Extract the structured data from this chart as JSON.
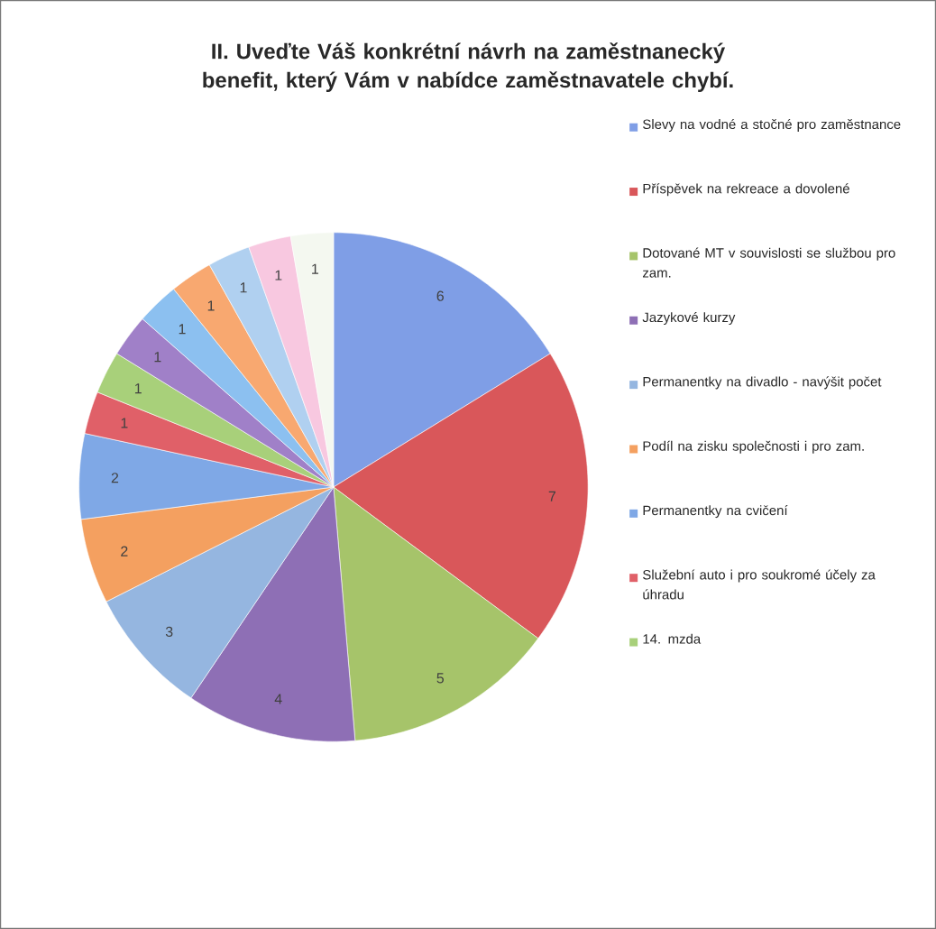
{
  "chart_data": {
    "type": "pie",
    "title": "II.  Uveďte Váš konkrétní návrh na zaměstnanecký benefit, který Vám v nabídce zaměstnavatele chybí.",
    "categories": [
      "Slevy na vodné a stočné pro zaměstnance",
      "Příspěvek na rekreace a dovolené",
      "Dotované MT v souvislosti se službou pro zam.",
      "Jazykové kurzy",
      "Permanentky na divadlo - navýšit počet",
      "Podíl na zisku společnosti i pro zam.",
      "Permanentky na cvičení",
      "Služební auto i pro soukromé účely za úhradu",
      "14. mzda",
      null,
      null,
      null,
      null,
      null,
      null
    ],
    "values": [
      6,
      7,
      5,
      4,
      3,
      2,
      2,
      1,
      1,
      1,
      1,
      1,
      1,
      1,
      1
    ],
    "colors": [
      "#7f9ee6",
      "#d9575a",
      "#a6c46a",
      "#8e6fb5",
      "#95b6e0",
      "#f4a060",
      "#7fa8e6",
      "#e06068",
      "#a8d07a",
      "#a080c8",
      "#8cc0f0",
      "#f8a870",
      "#b0d0f0",
      "#f8c8e0",
      "#f4f8f0"
    ],
    "data_labels": true,
    "legend": "right"
  }
}
